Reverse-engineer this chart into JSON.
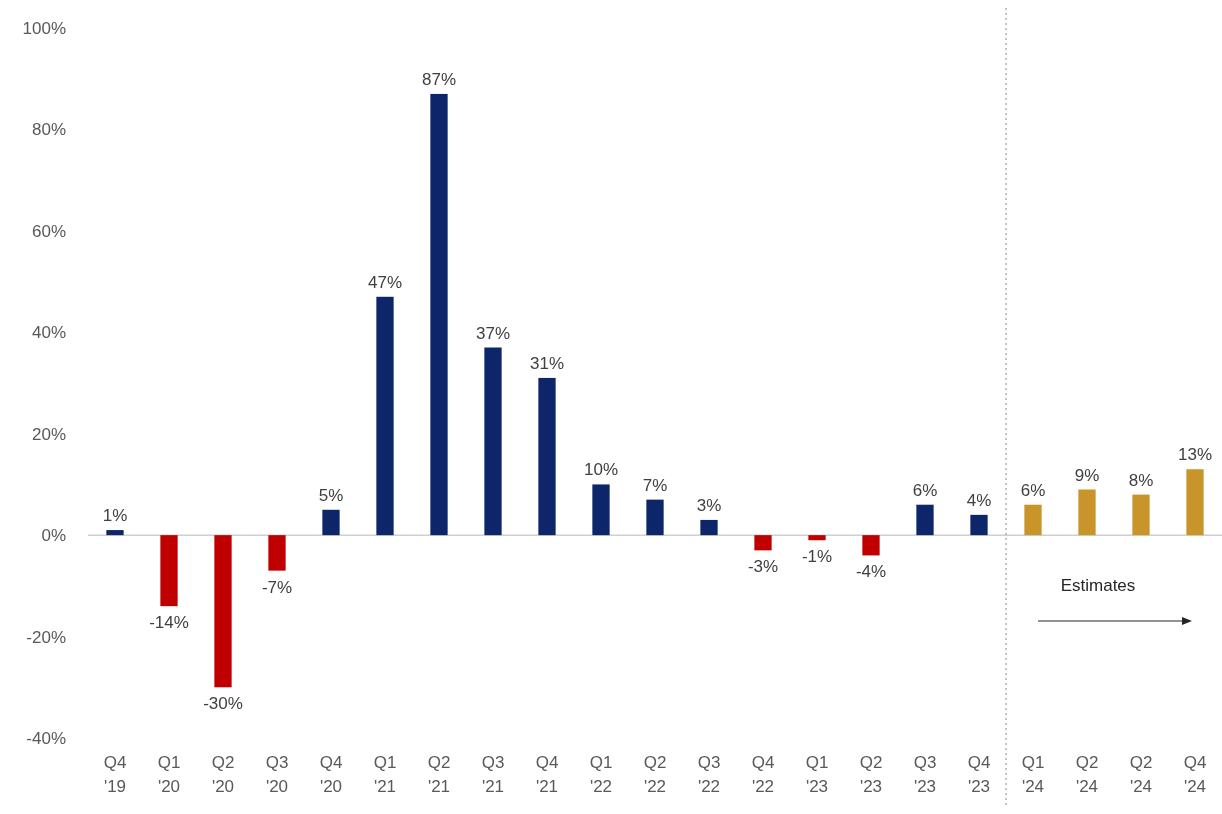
{
  "chart_data": {
    "type": "bar",
    "categories": [
      "Q4 '19",
      "Q1 '20",
      "Q2 '20",
      "Q3 '20",
      "Q4 '20",
      "Q1 '21",
      "Q2 '21",
      "Q3 '21",
      "Q4 '21",
      "Q1 '22",
      "Q2 '22",
      "Q3 '22",
      "Q4 '22",
      "Q1 '23",
      "Q2 '23",
      "Q3 '23",
      "Q4 '23",
      "Q1 '24",
      "Q2 '24",
      "Q2 '24",
      "Q4 '24"
    ],
    "values": [
      1,
      -14,
      -30,
      -7,
      5,
      47,
      87,
      37,
      31,
      10,
      7,
      3,
      -3,
      -1,
      -4,
      6,
      4,
      6,
      9,
      8,
      13
    ],
    "value_labels": [
      "1%",
      "-14%",
      "-30%",
      "-7%",
      "5%",
      "47%",
      "87%",
      "37%",
      "31%",
      "10%",
      "7%",
      "3%",
      "-3%",
      "-1%",
      "-4%",
      "6%",
      "4%",
      "6%",
      "9%",
      "8%",
      "13%"
    ],
    "colors": [
      "#0c2669",
      "#c00000",
      "#c00000",
      "#c00000",
      "#0c2669",
      "#0c2669",
      "#0c2669",
      "#0c2669",
      "#0c2669",
      "#0c2669",
      "#0c2669",
      "#0c2669",
      "#c00000",
      "#c00000",
      "#c00000",
      "#0c2669",
      "#0c2669",
      "#c9952b",
      "#c9952b",
      "#c9952b",
      "#c9952b"
    ],
    "ylim": [
      -40,
      100
    ],
    "yticks": [
      {
        "value": -40,
        "label": "-40%"
      },
      {
        "value": -20,
        "label": "-20%"
      },
      {
        "value": 0,
        "label": "0%"
      },
      {
        "value": 20,
        "label": "20%"
      },
      {
        "value": 40,
        "label": "40%"
      },
      {
        "value": 60,
        "label": "60%"
      },
      {
        "value": 80,
        "label": "80%"
      },
      {
        "value": 100,
        "label": "100%"
      }
    ],
    "grid": false,
    "ref_lines": [
      {
        "axis": "x",
        "value": "Q1 '24",
        "color": "#888888",
        "line_style": "dotted"
      }
    ],
    "annotations": [
      "Estimates"
    ]
  }
}
